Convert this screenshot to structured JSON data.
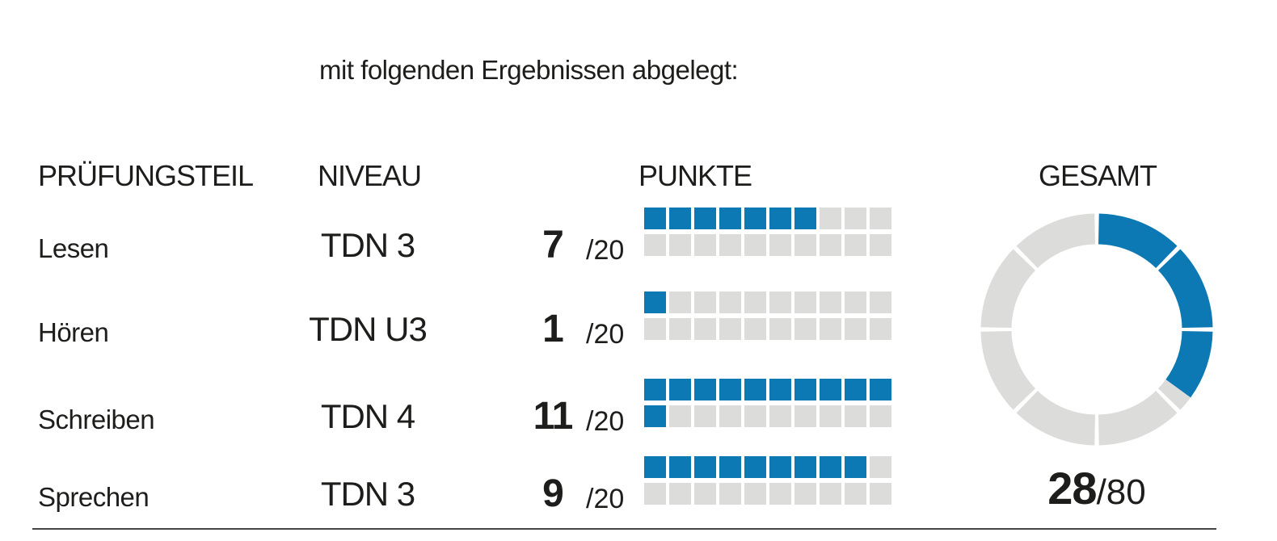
{
  "intro": {
    "text": "mit folgenden Ergebnissen abgelegt:"
  },
  "table": {
    "headers": {
      "part": "PRÜFUNGSTEIL",
      "level": "NIVEAU",
      "points": "PUNKTE",
      "total": "GESAMT"
    },
    "rows": [
      {
        "part": "Lesen",
        "level": "TDN 3",
        "points": "7",
        "suffix": "/20",
        "filled": 7,
        "max": 20
      },
      {
        "part": "Hören",
        "level": "TDN U3",
        "points": "1",
        "suffix": "/20",
        "filled": 1,
        "max": 20
      },
      {
        "part": "Schreiben",
        "level": "TDN 4",
        "points": "11",
        "suffix": "/20",
        "filled": 11,
        "max": 20
      },
      {
        "part": "Sprechen",
        "level": "TDN 3",
        "points": "9",
        "suffix": "/20",
        "filled": 9,
        "max": 20
      }
    ]
  },
  "total": {
    "value": "28",
    "suffix": "/80",
    "filled": 28,
    "max": 80
  },
  "colors": {
    "filled": "#0d79b4",
    "empty": "#dcdcdb",
    "text": "#1d1d1b",
    "rule": "#454545"
  },
  "chart_data": [
    {
      "type": "table",
      "title": "mit folgenden Ergebnissen abgelegt:",
      "columns": [
        "PRÜFUNGSTEIL",
        "NIVEAU",
        "PUNKTE"
      ],
      "rows": [
        {
          "pruefungsteil": "Lesen",
          "niveau": "TDN 3",
          "punkte": 7,
          "max": 20
        },
        {
          "pruefungsteil": "Hören",
          "niveau": "TDN U3",
          "punkte": 1,
          "max": 20
        },
        {
          "pruefungsteil": "Schreiben",
          "niveau": "TDN 4",
          "punkte": 11,
          "max": 20
        },
        {
          "pruefungsteil": "Sprechen",
          "niveau": "TDN 3",
          "punkte": 9,
          "max": 20
        }
      ],
      "note": "each score rendered as 2 rows of 10 squares (20 total), filled squares = punkte"
    },
    {
      "type": "pie",
      "variant": "donut",
      "title": "GESAMT",
      "value": 28,
      "max": 80,
      "label": "28/80",
      "segments": 8,
      "points_per_segment": 10,
      "filled_angle_deg": 126,
      "start_angle": "12 o'clock, clockwise",
      "filled_color": "#0d79b4",
      "empty_color": "#dcdcdb"
    }
  ]
}
